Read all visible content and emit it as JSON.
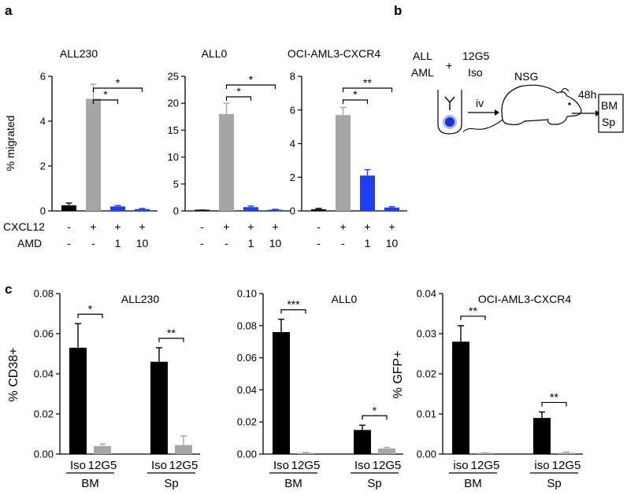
{
  "figure": {
    "panel_labels": {
      "a": "a",
      "b": "b",
      "c": "c"
    },
    "row_labels_a": [
      "CXCL12",
      "AMD"
    ],
    "sign_rows_a": [
      [
        "-",
        "+",
        "+",
        "+"
      ],
      [
        "-",
        "-",
        "1",
        "10"
      ]
    ],
    "schematic": {
      "cell_labels": [
        "ALL",
        "AML"
      ],
      "plus": "+",
      "ab_labels": [
        "12G5",
        "Iso"
      ],
      "route": "iv",
      "mouse": "NSG",
      "time": "48h",
      "readouts": [
        "BM",
        "Sp"
      ]
    }
  },
  "chart_data": [
    {
      "type": "bar",
      "panel": "a",
      "title": "ALL230",
      "ylabel": "% migrated",
      "ylim": [
        0,
        6
      ],
      "yticks": [
        "0",
        "2",
        "4",
        "6"
      ],
      "values": [
        0.25,
        5.0,
        0.2,
        0.08
      ],
      "errors": [
        0.1,
        0.65,
        0.04,
        0.03
      ],
      "colors": [
        "#000000",
        "#a6a6a6",
        "#1f3ff5",
        "#1f3ff5"
      ],
      "significance": [
        {
          "from": 1,
          "to": 2,
          "label": "*"
        },
        {
          "from": 1,
          "to": 3,
          "label": "*"
        }
      ]
    },
    {
      "type": "bar",
      "panel": "a",
      "title": "ALL0",
      "ylabel": "",
      "ylim": [
        0,
        25
      ],
      "yticks": [
        "0",
        "5",
        "10",
        "15",
        "20",
        "25"
      ],
      "values": [
        0.1,
        18.0,
        0.7,
        0.2
      ],
      "errors": [
        0.05,
        2.0,
        0.2,
        0.1
      ],
      "colors": [
        "#000000",
        "#a6a6a6",
        "#1f3ff5",
        "#1f3ff5"
      ],
      "significance": [
        {
          "from": 1,
          "to": 2,
          "label": "*"
        },
        {
          "from": 1,
          "to": 3,
          "label": "*"
        }
      ]
    },
    {
      "type": "bar",
      "panel": "a",
      "title": "OCI-AML3-CXCR4",
      "ylabel": "",
      "ylim": [
        0,
        8
      ],
      "yticks": [
        "0",
        "2",
        "4",
        "6",
        "8"
      ],
      "values": [
        0.1,
        5.7,
        2.1,
        0.2
      ],
      "errors": [
        0.05,
        0.45,
        0.35,
        0.05
      ],
      "colors": [
        "#000000",
        "#a6a6a6",
        "#1f3ff5",
        "#1f3ff5"
      ],
      "significance": [
        {
          "from": 1,
          "to": 2,
          "label": "*"
        },
        {
          "from": 1,
          "to": 3,
          "label": "**"
        }
      ]
    },
    {
      "type": "bar",
      "panel": "c",
      "title": "ALL230",
      "ylabel": "% CD38+",
      "ylim": [
        0,
        0.08
      ],
      "yticks": [
        "0.00",
        "0.02",
        "0.04",
        "0.06",
        "0.08"
      ],
      "categories": [
        "Iso",
        "12G5",
        "Iso",
        "12G5"
      ],
      "groups": [
        "BM",
        "Sp"
      ],
      "values": [
        0.053,
        0.004,
        0.046,
        0.0045
      ],
      "errors": [
        0.012,
        0.001,
        0.007,
        0.0045
      ],
      "colors": [
        "#000000",
        "#a6a6a6",
        "#000000",
        "#a6a6a6"
      ],
      "significance": [
        {
          "from": 0,
          "to": 1,
          "label": "*"
        },
        {
          "from": 2,
          "to": 3,
          "label": "**"
        }
      ]
    },
    {
      "type": "bar",
      "panel": "c",
      "title": "ALL0",
      "ylabel": "",
      "ylim": [
        0,
        0.1
      ],
      "yticks": [
        "0.00",
        "0.02",
        "0.04",
        "0.06",
        "0.08",
        "0.10"
      ],
      "categories": [
        "Iso",
        "12G5",
        "Iso",
        "12G5"
      ],
      "groups": [
        "BM",
        "Sp"
      ],
      "values": [
        0.076,
        0.0005,
        0.015,
        0.0035
      ],
      "errors": [
        0.008,
        0.0005,
        0.003,
        0.0007
      ],
      "colors": [
        "#000000",
        "#a6a6a6",
        "#000000",
        "#a6a6a6"
      ],
      "significance": [
        {
          "from": 0,
          "to": 1,
          "label": "***"
        },
        {
          "from": 2,
          "to": 3,
          "label": "*"
        }
      ]
    },
    {
      "type": "bar",
      "panel": "c",
      "title": "OCI-AML3-CXCR4",
      "ylabel": "% GFP+",
      "ylim": [
        0,
        0.04
      ],
      "yticks": [
        "0.00",
        "0.01",
        "0.02",
        "0.03",
        "0.04"
      ],
      "categories": [
        "iso",
        "12G5",
        "iso",
        "12G5"
      ],
      "groups": [
        "BM",
        "Sp"
      ],
      "values": [
        0.028,
        0.0002,
        0.009,
        0.0003
      ],
      "errors": [
        0.004,
        0.0001,
        0.0015,
        0.0002
      ],
      "colors": [
        "#000000",
        "#a6a6a6",
        "#000000",
        "#a6a6a6"
      ],
      "significance": [
        {
          "from": 0,
          "to": 1,
          "label": "**"
        },
        {
          "from": 2,
          "to": 3,
          "label": "**"
        }
      ]
    }
  ]
}
